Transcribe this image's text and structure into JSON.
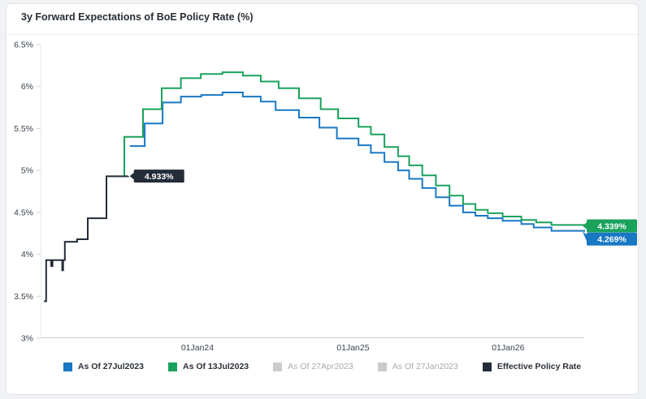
{
  "card": {
    "title": "3y Forward Expectations of BoE Policy Rate (%)"
  },
  "chart_data": {
    "type": "line",
    "subtype": "step",
    "title": "3y Forward Expectations of BoE Policy Rate (%)",
    "x_range": [
      "2022-12-30",
      "2026-06-29"
    ],
    "y_range": [
      3,
      6.5
    ],
    "grid": false,
    "legend_position": "bottom",
    "x_ticks": [
      {
        "value": "2024-01-01",
        "label": "01Jan24"
      },
      {
        "value": "2025-01-01",
        "label": "01Jan25"
      },
      {
        "value": "2026-01-01",
        "label": "01Jan26"
      }
    ],
    "y_ticks": [
      {
        "value": 3,
        "label": "3%"
      },
      {
        "value": 3.5,
        "label": "3.5%"
      },
      {
        "value": 4,
        "label": "4%"
      },
      {
        "value": 4.5,
        "label": "4.5%"
      },
      {
        "value": 5,
        "label": "5%"
      },
      {
        "value": 5.5,
        "label": "5.5%"
      },
      {
        "value": 6,
        "label": "6%"
      },
      {
        "value": 6.5,
        "label": "6.5%"
      }
    ],
    "series": [
      {
        "name": "As Of 27Jul2023",
        "color": "#1878c4",
        "visible": true,
        "end_label": "4.269%",
        "end_label_attach": "right-edge",
        "end_label_dy": 9,
        "points": [
          {
            "d": "2023-07-26",
            "v": 5.29
          },
          {
            "d": "2023-08-30",
            "v": 5.56
          },
          {
            "d": "2023-10-11",
            "v": 5.81
          },
          {
            "d": "2023-11-23",
            "v": 5.88
          },
          {
            "d": "2024-01-10",
            "v": 5.9
          },
          {
            "d": "2024-02-29",
            "v": 5.93
          },
          {
            "d": "2024-04-17",
            "v": 5.88
          },
          {
            "d": "2024-05-29",
            "v": 5.82
          },
          {
            "d": "2024-07-03",
            "v": 5.72
          },
          {
            "d": "2024-08-27",
            "v": 5.63
          },
          {
            "d": "2024-10-14",
            "v": 5.51
          },
          {
            "d": "2024-11-24",
            "v": 5.38
          },
          {
            "d": "2025-01-14",
            "v": 5.3
          },
          {
            "d": "2025-02-12",
            "v": 5.21
          },
          {
            "d": "2025-03-16",
            "v": 5.1
          },
          {
            "d": "2025-04-17",
            "v": 5.0
          },
          {
            "d": "2025-05-13",
            "v": 4.9
          },
          {
            "d": "2025-06-13",
            "v": 4.79
          },
          {
            "d": "2025-07-15",
            "v": 4.68
          },
          {
            "d": "2025-08-16",
            "v": 4.58
          },
          {
            "d": "2025-09-17",
            "v": 4.5
          },
          {
            "d": "2025-10-16",
            "v": 4.46
          },
          {
            "d": "2025-11-14",
            "v": 4.43
          },
          {
            "d": "2025-12-19",
            "v": 4.4
          },
          {
            "d": "2026-02-01",
            "v": 4.36
          },
          {
            "d": "2026-03-02",
            "v": 4.32
          },
          {
            "d": "2026-04-13",
            "v": 4.28
          },
          {
            "d": "2026-06-29",
            "v": 4.269
          }
        ]
      },
      {
        "name": "As Of 13Jul2023",
        "color": "#1aa25c",
        "visible": true,
        "end_label": "4.339%",
        "end_label_attach": "right-edge",
        "end_label_dy": 0,
        "points": [
          {
            "d": "2023-07-12",
            "v": 4.94
          },
          {
            "d": "2023-07-13",
            "v": 5.4
          },
          {
            "d": "2023-08-26",
            "v": 5.73
          },
          {
            "d": "2023-10-09",
            "v": 5.98
          },
          {
            "d": "2023-11-23",
            "v": 6.1
          },
          {
            "d": "2024-01-09",
            "v": 6.15
          },
          {
            "d": "2024-02-29",
            "v": 6.17
          },
          {
            "d": "2024-04-17",
            "v": 6.13
          },
          {
            "d": "2024-05-29",
            "v": 6.06
          },
          {
            "d": "2024-07-10",
            "v": 5.98
          },
          {
            "d": "2024-08-27",
            "v": 5.86
          },
          {
            "d": "2024-10-17",
            "v": 5.73
          },
          {
            "d": "2024-11-27",
            "v": 5.62
          },
          {
            "d": "2025-01-14",
            "v": 5.52
          },
          {
            "d": "2025-02-12",
            "v": 5.43
          },
          {
            "d": "2025-03-16",
            "v": 5.28
          },
          {
            "d": "2025-04-17",
            "v": 5.17
          },
          {
            "d": "2025-05-13",
            "v": 5.06
          },
          {
            "d": "2025-06-13",
            "v": 4.94
          },
          {
            "d": "2025-07-15",
            "v": 4.82
          },
          {
            "d": "2025-08-16",
            "v": 4.7
          },
          {
            "d": "2025-09-17",
            "v": 4.6
          },
          {
            "d": "2025-10-16",
            "v": 4.53
          },
          {
            "d": "2025-11-14",
            "v": 4.49
          },
          {
            "d": "2025-12-19",
            "v": 4.45
          },
          {
            "d": "2026-02-01",
            "v": 4.41
          },
          {
            "d": "2026-03-08",
            "v": 4.38
          },
          {
            "d": "2026-04-13",
            "v": 4.35
          },
          {
            "d": "2026-06-29",
            "v": 4.339
          }
        ]
      },
      {
        "name": "As Of 27Apr2023",
        "color": "#c9cbcd",
        "visible": false,
        "points": []
      },
      {
        "name": "As Of 27Jan2023",
        "color": "#c9cbcd",
        "visible": false,
        "points": []
      },
      {
        "name": "Effective Policy Rate",
        "color": "#232c38",
        "visible": true,
        "end_label": "4.933%",
        "end_label_attach": "line-end",
        "end_label_dy": 0,
        "points": [
          {
            "d": "2023-01-05",
            "v": 3.44
          },
          {
            "d": "2023-01-10",
            "v": 3.93
          },
          {
            "d": "2023-01-22",
            "v": 3.86
          },
          {
            "d": "2023-01-25",
            "v": 3.93
          },
          {
            "d": "2023-02-17",
            "v": 3.81
          },
          {
            "d": "2023-02-19",
            "v": 3.93
          },
          {
            "d": "2023-02-23",
            "v": 4.15
          },
          {
            "d": "2023-03-24",
            "v": 4.18
          },
          {
            "d": "2023-04-18",
            "v": 4.43
          },
          {
            "d": "2023-06-01",
            "v": 4.93
          },
          {
            "d": "2023-07-22",
            "v": 4.933
          }
        ]
      }
    ]
  }
}
